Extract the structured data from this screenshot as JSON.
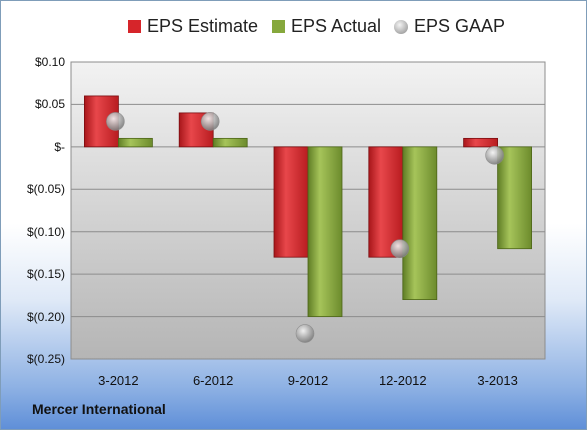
{
  "chart_data": {
    "type": "bar",
    "categories": [
      "3-2012",
      "6-2012",
      "9-2012",
      "12-2012",
      "3-2013"
    ],
    "series": [
      {
        "name": "EPS Estimate",
        "type": "bar",
        "color": "#d6252a",
        "values": [
          0.06,
          0.04,
          -0.13,
          -0.13,
          0.01
        ]
      },
      {
        "name": "EPS Actual",
        "type": "bar",
        "color": "#86a83c",
        "values": [
          0.01,
          0.01,
          -0.2,
          -0.18,
          -0.12
        ]
      },
      {
        "name": "EPS GAAP",
        "type": "scatter",
        "color": "#b0b0b0",
        "values": [
          0.03,
          0.03,
          -0.22,
          -0.12,
          -0.01
        ]
      }
    ],
    "ylim": [
      -0.25,
      0.1
    ],
    "yticks": [
      0.1,
      0.05,
      0,
      -0.05,
      -0.1,
      -0.15,
      -0.2,
      -0.25
    ],
    "ytick_labels": [
      "$0.10",
      "$0.05",
      "$-",
      "$(0.05)",
      "$(0.10)",
      "$(0.15)",
      "$(0.20)",
      "$(0.25)"
    ],
    "legend": "top",
    "grid": true
  },
  "company": "Mercer International"
}
